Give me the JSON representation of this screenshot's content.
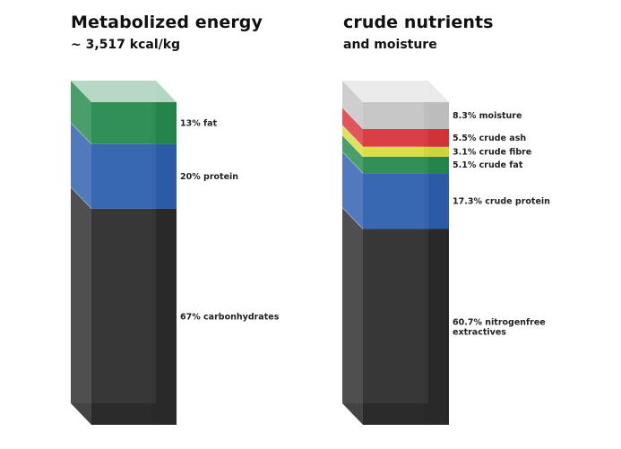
{
  "chart_data": [
    {
      "type": "bar",
      "title": "Metabolized energy",
      "subtitle": "~ 3,517 kcal/kg",
      "unit": "%",
      "segments": [
        {
          "label": "67% carbonhydrates",
          "value": 67,
          "color": "#2b2b2b"
        },
        {
          "label": "20% protein",
          "value": 20,
          "color": "#2d5fae"
        },
        {
          "label": "13% fat",
          "value": 13,
          "color": "#248a4d"
        }
      ]
    },
    {
      "type": "bar",
      "title": "crude nutrients",
      "subtitle": "and moisture",
      "unit": "%",
      "segments": [
        {
          "label": "60.7% nitrogenfree extractives",
          "value": 60.7,
          "color": "#2b2b2b"
        },
        {
          "label": "17.3% crude protein",
          "value": 17.3,
          "color": "#2d5fae"
        },
        {
          "label": "5.1% crude fat",
          "value": 5.1,
          "color": "#248a4d"
        },
        {
          "label": "3.1% crude fibre",
          "value": 3.1,
          "color": "#d9dd3a"
        },
        {
          "label": "5.5% crude ash",
          "value": 5.5,
          "color": "#d8343a"
        },
        {
          "label": "8.3% moisture",
          "value": 8.3,
          "color": "#c4c4c4"
        }
      ]
    }
  ]
}
